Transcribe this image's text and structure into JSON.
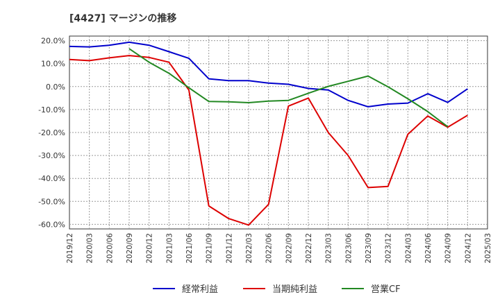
{
  "chart_data": {
    "type": "line",
    "title": "[4427]  マージンの推移",
    "xlabel": "",
    "ylabel": "",
    "ylim": [
      -62,
      22
    ],
    "yticks": [
      20,
      10,
      0,
      -10,
      -20,
      -30,
      -40,
      -50,
      -60
    ],
    "ytick_labels": [
      "20.0%",
      "10.0%",
      "0.0%",
      "-10.0%",
      "-20.0%",
      "-30.0%",
      "-40.0%",
      "-50.0%",
      "-60.0%"
    ],
    "x": [
      "2019/12",
      "2020/03",
      "2020/06",
      "2020/09",
      "2020/12",
      "2021/03",
      "2021/06",
      "2021/09",
      "2021/12",
      "2022/03",
      "2022/06",
      "2022/09",
      "2022/12",
      "2023/03",
      "2023/06",
      "2023/09",
      "2023/12",
      "2024/03",
      "2024/06",
      "2024/09",
      "2024/12",
      "2025/03"
    ],
    "grid": true,
    "legend_position": "bottom",
    "series": [
      {
        "name": "経常利益",
        "color": "#0000cc",
        "values": [
          17.5,
          17.3,
          18.0,
          19.3,
          18.0,
          15.2,
          12.3,
          3.4,
          2.6,
          2.6,
          1.5,
          1.0,
          -0.8,
          -1.5,
          -6.0,
          -8.8,
          -7.6,
          -7.2,
          -3.1,
          -6.9,
          -1.0,
          null
        ]
      },
      {
        "name": "当期純利益",
        "color": "#dd0000",
        "values": [
          11.8,
          11.3,
          12.5,
          13.5,
          12.7,
          10.6,
          -1.5,
          -52.0,
          -57.5,
          -60.3,
          -51.3,
          -8.5,
          -5.0,
          -20.0,
          -30.0,
          -44.0,
          -43.5,
          -20.8,
          -12.8,
          -17.7,
          -12.5,
          null
        ]
      },
      {
        "name": "営業CF",
        "color": "#228822",
        "values": [
          null,
          null,
          null,
          16.5,
          10.6,
          5.8,
          -0.5,
          -6.5,
          -6.6,
          -7.0,
          -6.3,
          -6.0,
          -2.9,
          0.1,
          2.3,
          4.6,
          -0.1,
          -5.3,
          -10.9,
          -17.5,
          null,
          null
        ]
      }
    ]
  }
}
